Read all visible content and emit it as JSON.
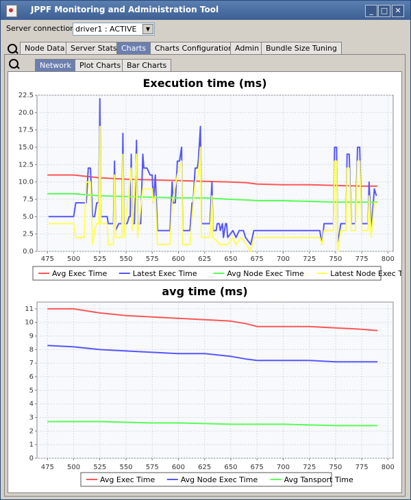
{
  "window": {
    "title": "JPPF Monitoring and Administration Tool",
    "minimize": "_",
    "maximize": "□",
    "close": "✕"
  },
  "server": {
    "label": "Server connection",
    "value": "driver1 : ACTIVE"
  },
  "tabs": [
    {
      "label": "Node Data"
    },
    {
      "label": "Server Stats"
    },
    {
      "label": "Charts"
    },
    {
      "label": "Charts Configuration"
    },
    {
      "label": "Admin"
    },
    {
      "label": "Bundle Size Tuning"
    }
  ],
  "subtabs": [
    {
      "label": "Network"
    },
    {
      "label": "Plot Charts"
    },
    {
      "label": "Bar Charts"
    }
  ],
  "colors": {
    "red": "#ff5555",
    "blue": "#5555ff",
    "green": "#55ff55",
    "yellow": "#ffff55"
  },
  "chart_data": [
    {
      "type": "line",
      "title": "Execution time (ms)",
      "xlabel": "",
      "ylabel": "",
      "xlim": [
        465,
        805
      ],
      "ylim": [
        0,
        22.5
      ],
      "xticks": [
        475,
        500,
        525,
        550,
        575,
        600,
        625,
        650,
        675,
        700,
        725,
        750,
        775,
        800
      ],
      "yticks": [
        0,
        2.5,
        5.0,
        7.5,
        10.0,
        12.5,
        15.0,
        17.5,
        20.0,
        22.5
      ],
      "grid": true,
      "legend_position": "bottom",
      "series": [
        {
          "name": "Avg Exec Time",
          "color": "#ff5555",
          "points": [
            [
              475,
              11
            ],
            [
              500,
              11
            ],
            [
              525,
              10.6
            ],
            [
              550,
              10.4
            ],
            [
              575,
              10.3
            ],
            [
              600,
              10.2
            ],
            [
              625,
              10.1
            ],
            [
              650,
              10.0
            ],
            [
              665,
              9.9
            ],
            [
              675,
              9.7
            ],
            [
              700,
              9.6
            ],
            [
              725,
              9.6
            ],
            [
              750,
              9.5
            ],
            [
              775,
              9.4
            ],
            [
              790,
              9.4
            ]
          ]
        },
        {
          "name": "Latest Exec Time",
          "color": "#5555ff",
          "points": [
            [
              476,
              5
            ],
            [
              500,
              5
            ],
            [
              502,
              7
            ],
            [
              512,
              7
            ],
            [
              514,
              12
            ],
            [
              516,
              12
            ],
            [
              518,
              5
            ],
            [
              520,
              5
            ],
            [
              522,
              7
            ],
            [
              524,
              7
            ],
            [
              525,
              22
            ],
            [
              526,
              5
            ],
            [
              532,
              5
            ],
            [
              533,
              4
            ],
            [
              538,
              4
            ],
            [
              539,
              13
            ],
            [
              540,
              3
            ],
            [
              543,
              4
            ],
            [
              546,
              4
            ],
            [
              547,
              17
            ],
            [
              548,
              4
            ],
            [
              551,
              4
            ],
            [
              553,
              5
            ],
            [
              554,
              5
            ],
            [
              555,
              14
            ],
            [
              556,
              4
            ],
            [
              558,
              4
            ],
            [
              560,
              16
            ],
            [
              561,
              4
            ],
            [
              564,
              4
            ],
            [
              566,
              14
            ],
            [
              567,
              12
            ],
            [
              570,
              12
            ],
            [
              573,
              11
            ],
            [
              575,
              11
            ],
            [
              576,
              7
            ],
            [
              578,
              11
            ],
            [
              580,
              3
            ],
            [
              592,
              3
            ],
            [
              594,
              10
            ],
            [
              595,
              7
            ],
            [
              597,
              7
            ],
            [
              599,
              13
            ],
            [
              601,
              13
            ],
            [
              603,
              15
            ],
            [
              604,
              3
            ],
            [
              611,
              3
            ],
            [
              613,
              7
            ],
            [
              614,
              7
            ],
            [
              616,
              12
            ],
            [
              618,
              12
            ],
            [
              619,
              13
            ],
            [
              621,
              18
            ],
            [
              622,
              4
            ],
            [
              630,
              4
            ],
            [
              632,
              10
            ],
            [
              633,
              3
            ],
            [
              636,
              3
            ],
            [
              637,
              4
            ],
            [
              639,
              4
            ],
            [
              640,
              3
            ],
            [
              642,
              4
            ],
            [
              643,
              2
            ],
            [
              645,
              4
            ],
            [
              646,
              4
            ],
            [
              647,
              2
            ],
            [
              652,
              3
            ],
            [
              655,
              2
            ],
            [
              658,
              3
            ],
            [
              662,
              3
            ],
            [
              664,
              2
            ],
            [
              669,
              1
            ],
            [
              672,
              3
            ],
            [
              700,
              3
            ],
            [
              735,
              3
            ],
            [
              737,
              1
            ],
            [
              739,
              4
            ],
            [
              748,
              4
            ],
            [
              749,
              15
            ],
            [
              751,
              15
            ],
            [
              752,
              1
            ],
            [
              755,
              4
            ],
            [
              760,
              4
            ],
            [
              761,
              14
            ],
            [
              763,
              14
            ],
            [
              765,
              4
            ],
            [
              769,
              4
            ],
            [
              771,
              15
            ],
            [
              773,
              15
            ],
            [
              775,
              4
            ],
            [
              781,
              4
            ],
            [
              782,
              10
            ],
            [
              784,
              3
            ],
            [
              787,
              9
            ],
            [
              789,
              8
            ]
          ]
        },
        {
          "name": "Avg Node Exec Time",
          "color": "#55ff55",
          "points": [
            [
              475,
              8.3
            ],
            [
              500,
              8.3
            ],
            [
              525,
              8.0
            ],
            [
              550,
              7.9
            ],
            [
              575,
              7.8
            ],
            [
              600,
              7.7
            ],
            [
              625,
              7.7
            ],
            [
              650,
              7.5
            ],
            [
              665,
              7.4
            ],
            [
              675,
              7.3
            ],
            [
              700,
              7.3
            ],
            [
              725,
              7.2
            ],
            [
              750,
              7.1
            ],
            [
              775,
              7.1
            ],
            [
              790,
              7.1
            ]
          ]
        },
        {
          "name": "Latest Node Exec Time",
          "color": "#ffff55",
          "points": [
            [
              476,
              4
            ],
            [
              500,
              4
            ],
            [
              502,
              2
            ],
            [
              510,
              2
            ],
            [
              512,
              10
            ],
            [
              516,
              10
            ],
            [
              518,
              1
            ],
            [
              520,
              3
            ],
            [
              522,
              4
            ],
            [
              524,
              4
            ],
            [
              525,
              18
            ],
            [
              526,
              4
            ],
            [
              532,
              4
            ],
            [
              533,
              1
            ],
            [
              538,
              1
            ],
            [
              539,
              11
            ],
            [
              540,
              2
            ],
            [
              546,
              2
            ],
            [
              547,
              14
            ],
            [
              548,
              2
            ],
            [
              555,
              12
            ],
            [
              556,
              3
            ],
            [
              560,
              14
            ],
            [
              561,
              2
            ],
            [
              566,
              9
            ],
            [
              567,
              9
            ],
            [
              570,
              9
            ],
            [
              575,
              9
            ],
            [
              576,
              7
            ],
            [
              578,
              8
            ],
            [
              580,
              1
            ],
            [
              592,
              1
            ],
            [
              594,
              7
            ],
            [
              599,
              11
            ],
            [
              603,
              13
            ],
            [
              604,
              1
            ],
            [
              611,
              1
            ],
            [
              613,
              5
            ],
            [
              616,
              10
            ],
            [
              619,
              11
            ],
            [
              621,
              15
            ],
            [
              622,
              2
            ],
            [
              630,
              2
            ],
            [
              632,
              8
            ],
            [
              633,
              2
            ],
            [
              640,
              1
            ],
            [
              643,
              1
            ],
            [
              647,
              1
            ],
            [
              652,
              2
            ],
            [
              655,
              1
            ],
            [
              660,
              2
            ],
            [
              669,
              0
            ],
            [
              672,
              2
            ],
            [
              700,
              2
            ],
            [
              735,
              2
            ],
            [
              737,
              1
            ],
            [
              739,
              3
            ],
            [
              748,
              3
            ],
            [
              749,
              13
            ],
            [
              751,
              13
            ],
            [
              752,
              0
            ],
            [
              755,
              3
            ],
            [
              760,
              3
            ],
            [
              761,
              12
            ],
            [
              763,
              12
            ],
            [
              765,
              3
            ],
            [
              769,
              3
            ],
            [
              771,
              13
            ],
            [
              773,
              13
            ],
            [
              775,
              3
            ],
            [
              781,
              3
            ],
            [
              782,
              8
            ],
            [
              784,
              2
            ],
            [
              787,
              7
            ],
            [
              789,
              7
            ]
          ]
        }
      ]
    },
    {
      "type": "line",
      "title": "avg time (ms)",
      "xlabel": "",
      "ylabel": "",
      "xlim": [
        465,
        805
      ],
      "ylim": [
        0,
        11.5
      ],
      "xticks": [
        475,
        500,
        525,
        550,
        575,
        600,
        625,
        650,
        675,
        700,
        725,
        750,
        775,
        800
      ],
      "yticks": [
        0,
        1,
        2,
        3,
        4,
        5,
        6,
        7,
        8,
        9,
        10,
        11
      ],
      "grid": true,
      "legend_position": "bottom",
      "series": [
        {
          "name": "Avg Exec Time",
          "color": "#ff5555",
          "points": [
            [
              475,
              11
            ],
            [
              500,
              11
            ],
            [
              525,
              10.7
            ],
            [
              550,
              10.5
            ],
            [
              575,
              10.4
            ],
            [
              600,
              10.3
            ],
            [
              625,
              10.2
            ],
            [
              650,
              10.1
            ],
            [
              665,
              9.9
            ],
            [
              675,
              9.7
            ],
            [
              700,
              9.7
            ],
            [
              725,
              9.7
            ],
            [
              750,
              9.6
            ],
            [
              775,
              9.5
            ],
            [
              790,
              9.4
            ]
          ]
        },
        {
          "name": "Avg Node Exec Time",
          "color": "#5555ff",
          "points": [
            [
              475,
              8.3
            ],
            [
              500,
              8.2
            ],
            [
              525,
              8.0
            ],
            [
              550,
              7.9
            ],
            [
              575,
              7.8
            ],
            [
              600,
              7.7
            ],
            [
              625,
              7.7
            ],
            [
              650,
              7.5
            ],
            [
              665,
              7.3
            ],
            [
              675,
              7.2
            ],
            [
              700,
              7.2
            ],
            [
              725,
              7.2
            ],
            [
              750,
              7.1
            ],
            [
              775,
              7.1
            ],
            [
              790,
              7.1
            ]
          ]
        },
        {
          "name": "Avg Tansport Time",
          "color": "#55ff55",
          "points": [
            [
              475,
              2.7
            ],
            [
              500,
              2.7
            ],
            [
              525,
              2.7
            ],
            [
              550,
              2.65
            ],
            [
              575,
              2.6
            ],
            [
              600,
              2.6
            ],
            [
              625,
              2.55
            ],
            [
              650,
              2.5
            ],
            [
              675,
              2.5
            ],
            [
              700,
              2.5
            ],
            [
              725,
              2.45
            ],
            [
              750,
              2.4
            ],
            [
              775,
              2.4
            ],
            [
              790,
              2.4
            ]
          ]
        }
      ]
    }
  ]
}
